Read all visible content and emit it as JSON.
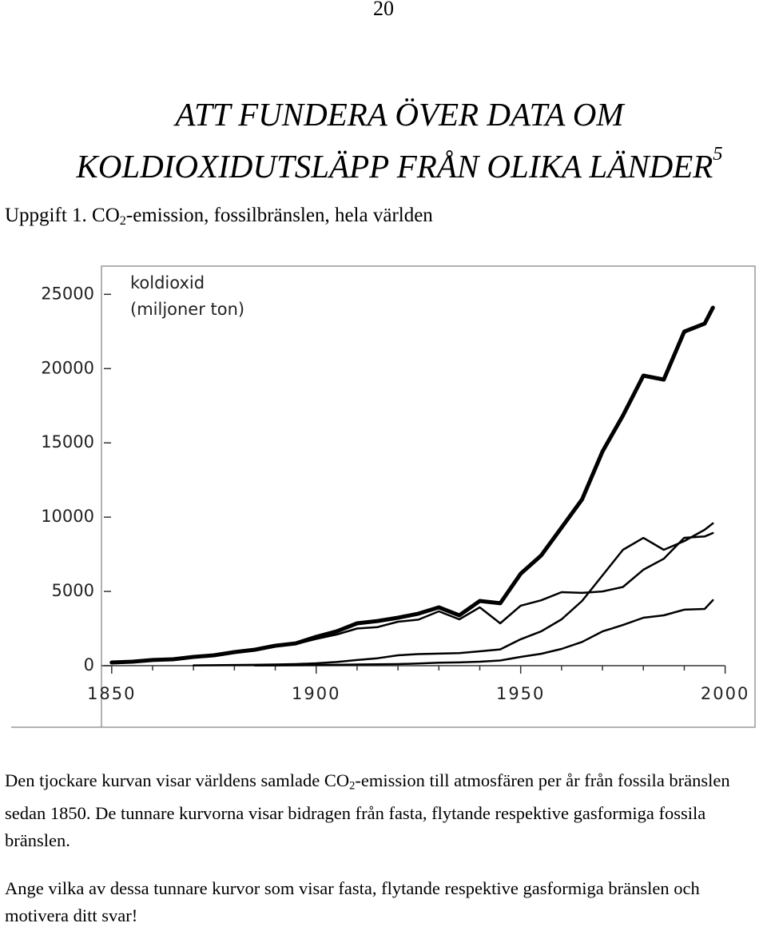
{
  "page_number": "20",
  "title": {
    "lines": [
      "ATT FUNDERA ÖVER DATA OM",
      "KOLDIOXIDUTSLÄPP FRÅN OLIKA LÄNDER"
    ],
    "footnote": "5"
  },
  "task": {
    "pre": "Uppgift 1. CO",
    "sub": "2",
    "post": "-emission, fossilbränslen, hela världen"
  },
  "chart_data": {
    "type": "line",
    "y_label": [
      "koldioxid",
      "(miljoner ton)"
    ],
    "x": [
      1850,
      1855,
      1860,
      1865,
      1870,
      1875,
      1880,
      1885,
      1890,
      1895,
      1900,
      1905,
      1910,
      1915,
      1920,
      1925,
      1930,
      1935,
      1940,
      1945,
      1950,
      1955,
      1960,
      1965,
      1970,
      1975,
      1980,
      1985,
      1990,
      1995,
      1997
    ],
    "series": [
      {
        "color": "#000000",
        "line_width": 5,
        "values": [
          215,
          270,
          380,
          430,
          590,
          700,
          915,
          1075,
          1345,
          1500,
          1940,
          2310,
          2850,
          3010,
          3230,
          3500,
          3930,
          3390,
          4360,
          4200,
          6190,
          7420,
          9300,
          11190,
          14420,
          16840,
          19530,
          19260,
          22490,
          23030,
          24100
        ]
      },
      {
        "color": "#000000",
        "line_width": 2.5,
        "values": [
          215,
          270,
          380,
          430,
          590,
          700,
          900,
          1050,
          1300,
          1450,
          1800,
          2100,
          2500,
          2600,
          2960,
          3100,
          3660,
          3120,
          3930,
          2850,
          4040,
          4400,
          4950,
          4900,
          5000,
          5300,
          6460,
          7200,
          8610,
          8700,
          8930
        ]
      },
      {
        "color": "#000000",
        "line_width": 2.5,
        "values": [
          null,
          null,
          null,
          null,
          20,
          30,
          50,
          60,
          80,
          110,
          160,
          250,
          380,
          500,
          700,
          780,
          810,
          850,
          970,
          1100,
          1780,
          2310,
          3120,
          4360,
          6080,
          7800,
          8600,
          7800,
          8390,
          9150,
          9580
        ]
      },
      {
        "color": "#000000",
        "line_width": 2.5,
        "values": [
          null,
          null,
          null,
          null,
          null,
          null,
          null,
          10,
          20,
          30,
          50,
          60,
          80,
          90,
          110,
          150,
          200,
          220,
          270,
          350,
          590,
          800,
          1130,
          1600,
          2310,
          2740,
          3230,
          3390,
          3770,
          3820,
          4410
        ]
      }
    ],
    "xlim": [
      1847.5,
      2007.3
    ],
    "xticks": [
      1850,
      1900,
      1950,
      2000
    ],
    "xticks_minor": [
      1860,
      1870,
      1880,
      1890,
      1910,
      1920,
      1930,
      1940,
      1960,
      1970,
      1980,
      1990
    ],
    "ylim": [
      0,
      26900
    ],
    "yticks": [
      0,
      5000,
      10000,
      15000,
      20000,
      25000
    ],
    "grid": false
  },
  "caption": {
    "pre": "Den tjockare kurvan visar världens samlade CO",
    "sub": "2",
    "post": "-emission till atmosfären per år från fossila bränslen sedan 1850. De tunnare kurvorna visar bidragen från fasta, flytande respektive gasformiga fossila bränslen."
  },
  "question": "Ange vilka av dessa tunnare kurvor som visar fasta, flytande respektive gasformiga bränslen och motivera ditt svar!"
}
